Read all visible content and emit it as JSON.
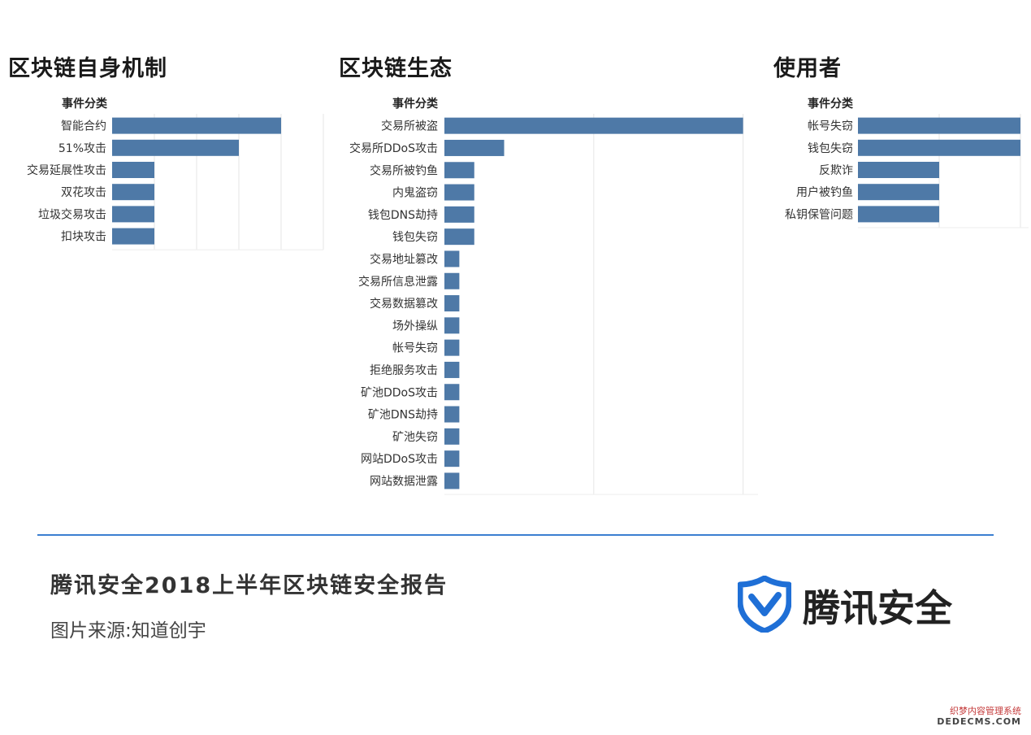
{
  "chart_data": [
    {
      "type": "bar",
      "orientation": "horizontal",
      "title": "区块链自身机制",
      "category_header": "事件分类",
      "categories": [
        "智能合约",
        "51%攻击",
        "交易延展性攻击",
        "双花攻击",
        "垃圾交易攻击",
        "扣块攻击"
      ],
      "values": [
        4,
        3,
        1,
        1,
        1,
        1
      ],
      "xlim": [
        0,
        5
      ],
      "grid": true,
      "color": "#4e79a7"
    },
    {
      "type": "bar",
      "orientation": "horizontal",
      "title": "区块链生态",
      "category_header": "事件分类",
      "categories": [
        "交易所被盗",
        "交易所DDoS攻击",
        "交易所被钓鱼",
        "内鬼盗窃",
        "钱包DNS劫持",
        "钱包失窃",
        "交易地址篡改",
        "交易所信息泄露",
        "交易数据篡改",
        "场外操纵",
        "帐号失窃",
        "拒绝服务攻击",
        "矿池DDoS攻击",
        "矿池DNS劫持",
        "矿池失窃",
        "网站DDoS攻击",
        "网站数据泄露"
      ],
      "values": [
        20,
        4,
        2,
        2,
        2,
        2,
        1,
        1,
        1,
        1,
        1,
        1,
        1,
        1,
        1,
        1,
        1
      ],
      "xlim": [
        0,
        21
      ],
      "grid": true,
      "color": "#4e79a7"
    },
    {
      "type": "bar",
      "orientation": "horizontal",
      "title": "使用者",
      "category_header": "事件分类",
      "categories": [
        "帐号失窃",
        "钱包失窃",
        "反欺诈",
        "用户被钓鱼",
        "私钥保管问题"
      ],
      "values": [
        2,
        2,
        1,
        1,
        1
      ],
      "xlim": [
        0,
        2.1
      ],
      "grid": true,
      "color": "#4e79a7"
    }
  ],
  "footer": {
    "report_title": "腾讯安全2018上半年区块链安全报告",
    "source": "图片来源:知道创宇",
    "brand_name": "腾讯安全",
    "logo_color": "#1f6fd6",
    "watermark_line1": "织梦内容管理系统",
    "watermark_line2": "DEDECMS.COM"
  }
}
